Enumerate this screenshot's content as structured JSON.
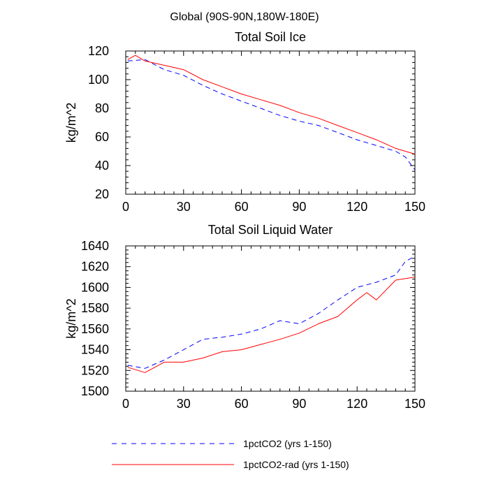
{
  "page_title": "Global (90S-90N,180W-180E)",
  "legend": [
    {
      "label": "1pctCO2 (yrs 1-150)",
      "color": "#0000ff",
      "dash": "dashed"
    },
    {
      "label": "1pctCO2-rad (yrs 1-150)",
      "color": "#ff0000",
      "dash": "solid"
    }
  ],
  "chart_data": [
    {
      "type": "line",
      "title": "Total Soil Ice",
      "xlabel": "",
      "ylabel": "kg/m^2",
      "xlim": [
        0,
        150
      ],
      "ylim": [
        20,
        120
      ],
      "xticks": [
        0,
        30,
        60,
        90,
        120,
        150
      ],
      "yticks": [
        20,
        40,
        60,
        80,
        100,
        120
      ],
      "grid": false,
      "series": [
        {
          "name": "1pctCO2 (yrs 1-150)",
          "color": "#0000ff",
          "dash": "dashed",
          "x": [
            1,
            10,
            20,
            30,
            40,
            50,
            60,
            70,
            80,
            90,
            100,
            110,
            120,
            130,
            140,
            145,
            150
          ],
          "y": [
            113,
            114,
            107,
            103,
            96,
            90,
            85,
            80,
            75,
            71,
            68,
            63,
            58,
            54,
            50,
            46,
            37
          ]
        },
        {
          "name": "1pctCO2-rad (yrs 1-150)",
          "color": "#ff0000",
          "dash": "solid",
          "x": [
            1,
            5,
            10,
            20,
            30,
            40,
            50,
            60,
            70,
            80,
            90,
            100,
            110,
            120,
            130,
            140,
            150
          ],
          "y": [
            114,
            117,
            113,
            110,
            107,
            100,
            95,
            90,
            86,
            82,
            77,
            73,
            68,
            63,
            58,
            52,
            48
          ]
        }
      ]
    },
    {
      "type": "line",
      "title": "Total Soil Liquid Water",
      "xlabel": "",
      "ylabel": "kg/m^2",
      "xlim": [
        0,
        150
      ],
      "ylim": [
        1500,
        1640
      ],
      "xticks": [
        0,
        30,
        60,
        90,
        120,
        150
      ],
      "yticks": [
        1500,
        1520,
        1540,
        1560,
        1580,
        1600,
        1620,
        1640
      ],
      "grid": false,
      "series": [
        {
          "name": "1pctCO2 (yrs 1-150)",
          "color": "#0000ff",
          "dash": "dashed",
          "x": [
            1,
            10,
            20,
            30,
            40,
            50,
            60,
            70,
            80,
            90,
            100,
            110,
            120,
            130,
            140,
            145,
            150
          ],
          "y": [
            1525,
            1522,
            1530,
            1540,
            1550,
            1552,
            1555,
            1560,
            1568,
            1565,
            1575,
            1588,
            1600,
            1605,
            1612,
            1625,
            1630
          ]
        },
        {
          "name": "1pctCO2-rad (yrs 1-150)",
          "color": "#ff0000",
          "dash": "solid",
          "x": [
            1,
            10,
            20,
            30,
            40,
            50,
            60,
            70,
            80,
            90,
            100,
            110,
            120,
            125,
            130,
            140,
            150
          ],
          "y": [
            1523,
            1518,
            1528,
            1528,
            1532,
            1538,
            1540,
            1545,
            1550,
            1556,
            1565,
            1572,
            1588,
            1595,
            1588,
            1607,
            1610
          ]
        }
      ]
    }
  ]
}
